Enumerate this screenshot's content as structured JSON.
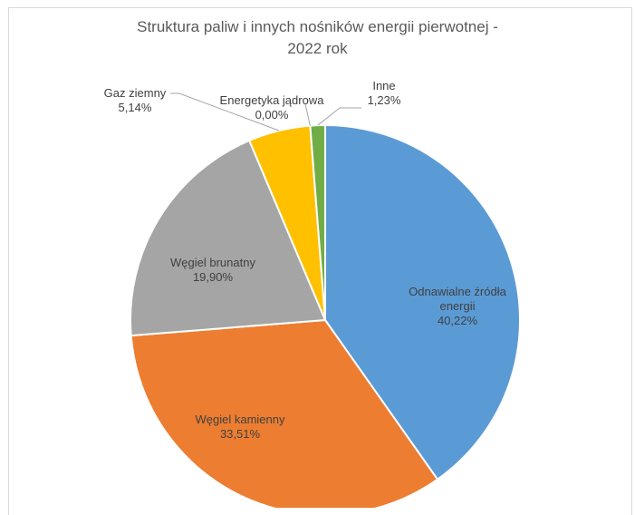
{
  "chart_data": {
    "type": "pie",
    "title_lines": [
      "Struktura paliw i innych nośników energii pierwotnej -",
      "2022 rok"
    ],
    "start_angle_deg": 0,
    "direction": "clockwise",
    "slices": [
      {
        "label_lines": [
          "Odnawialne źródła",
          "energii"
        ],
        "value": 40.22,
        "value_text": "40,22%",
        "color": "#5b9bd5"
      },
      {
        "label_lines": [
          "Węgiel kamienny"
        ],
        "value": 33.51,
        "value_text": "33,51%",
        "color": "#ed7d31"
      },
      {
        "label_lines": [
          "Węgiel brunatny"
        ],
        "value": 19.9,
        "value_text": "19,90%",
        "color": "#a5a5a5"
      },
      {
        "label_lines": [
          "Gaz ziemny"
        ],
        "value": 5.14,
        "value_text": "5,14%",
        "color": "#ffc000"
      },
      {
        "label_lines": [
          "Energetyka jądrowa"
        ],
        "value": 0.0,
        "value_text": "0,00%",
        "color": "#4472c4"
      },
      {
        "label_lines": [
          "Inne"
        ],
        "value": 1.23,
        "value_text": "1,23%",
        "color": "#70ad47"
      }
    ]
  }
}
